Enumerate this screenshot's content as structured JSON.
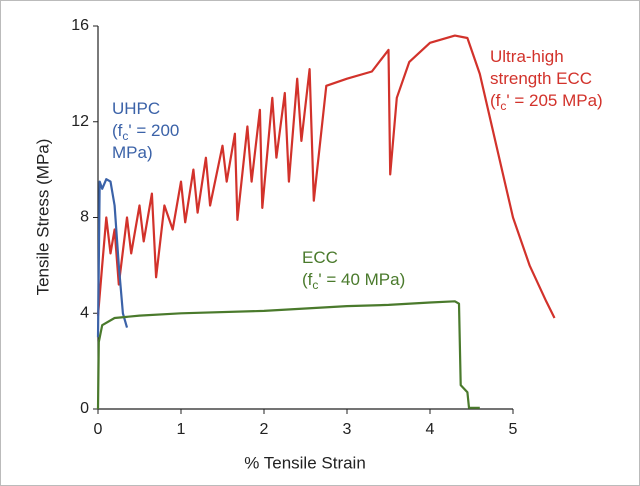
{
  "chart_data": {
    "type": "line",
    "xlabel": "% Tensile Strain",
    "ylabel": "Tensile Stress (MPa)",
    "xlim": [
      0,
      5
    ],
    "xticks": [
      0,
      1,
      2,
      3,
      4,
      5
    ],
    "ylim": [
      0,
      16
    ],
    "yticks": [
      0,
      4,
      8,
      12,
      16
    ],
    "grid": false,
    "series": [
      {
        "name": "Ultra-high strength ECC",
        "color": "#d2322b",
        "x": [
          0,
          0.05,
          0.1,
          0.15,
          0.2,
          0.25,
          0.35,
          0.4,
          0.5,
          0.55,
          0.65,
          0.7,
          0.8,
          0.9,
          1.0,
          1.05,
          1.15,
          1.2,
          1.3,
          1.35,
          1.5,
          1.55,
          1.65,
          1.68,
          1.8,
          1.85,
          1.95,
          1.98,
          2.1,
          2.15,
          2.25,
          2.3,
          2.4,
          2.45,
          2.55,
          2.6,
          2.75,
          3.0,
          3.3,
          3.5,
          3.52,
          3.6,
          3.75,
          4.0,
          4.3,
          4.45,
          4.6,
          4.8,
          5.0,
          5.2,
          5.4,
          5.5
        ],
        "values": [
          3.9,
          6,
          8,
          6.5,
          7.5,
          5.2,
          8,
          6.5,
          8.5,
          7,
          9,
          5.5,
          8.5,
          7.5,
          9.5,
          7.8,
          10,
          8.2,
          10.5,
          8.5,
          11,
          9.5,
          11.5,
          7.9,
          11.8,
          9.5,
          12.5,
          8.4,
          13,
          10.5,
          13.2,
          9.5,
          13.8,
          11.2,
          14.2,
          8.7,
          13.5,
          13.8,
          14.1,
          15,
          9.8,
          13,
          14.5,
          15.3,
          15.6,
          15.5,
          14,
          11,
          8,
          6,
          4.5,
          3.8
        ]
      },
      {
        "name": "UHPC",
        "color": "#3b62a8",
        "x": [
          0,
          0.02,
          0.05,
          0.1,
          0.15,
          0.2,
          0.25,
          0.3,
          0.35
        ],
        "values": [
          3,
          9.5,
          9.2,
          9.6,
          9.5,
          8.5,
          6,
          4,
          3.4
        ]
      },
      {
        "name": "ECC",
        "color": "#4a7a2c",
        "x": [
          0,
          0.01,
          0.05,
          0.2,
          0.5,
          1,
          2,
          3,
          3.5,
          4,
          4.3,
          4.35,
          4.37,
          4.45,
          4.47,
          4.6
        ],
        "values": [
          0,
          2.8,
          3.5,
          3.8,
          3.9,
          4.0,
          4.1,
          4.3,
          4.35,
          4.45,
          4.5,
          4.4,
          1,
          0.7,
          0.05,
          0.05
        ]
      }
    ],
    "annotations": [
      {
        "color": "#d2322b",
        "lines": [
          [
            {
              "text": "Ultra-high"
            }
          ],
          [
            {
              "text": "strength ECC"
            }
          ],
          [
            {
              "text": "(f"
            },
            {
              "text": "c",
              "sub": true
            },
            {
              "text": "' = 205 MPa)"
            }
          ]
        ]
      },
      {
        "color": "#3b62a8",
        "lines": [
          [
            {
              "text": "UHPC"
            }
          ],
          [
            {
              "text": "(f"
            },
            {
              "text": "c",
              "sub": true
            },
            {
              "text": "' = 200"
            }
          ],
          [
            {
              "text": "MPa)"
            }
          ]
        ]
      },
      {
        "color": "#4a7a2c",
        "lines": [
          [
            {
              "text": "ECC"
            }
          ],
          [
            {
              "text": "(f"
            },
            {
              "text": "c",
              "sub": true
            },
            {
              "text": "' = 40 MPa)"
            }
          ]
        ]
      }
    ]
  }
}
